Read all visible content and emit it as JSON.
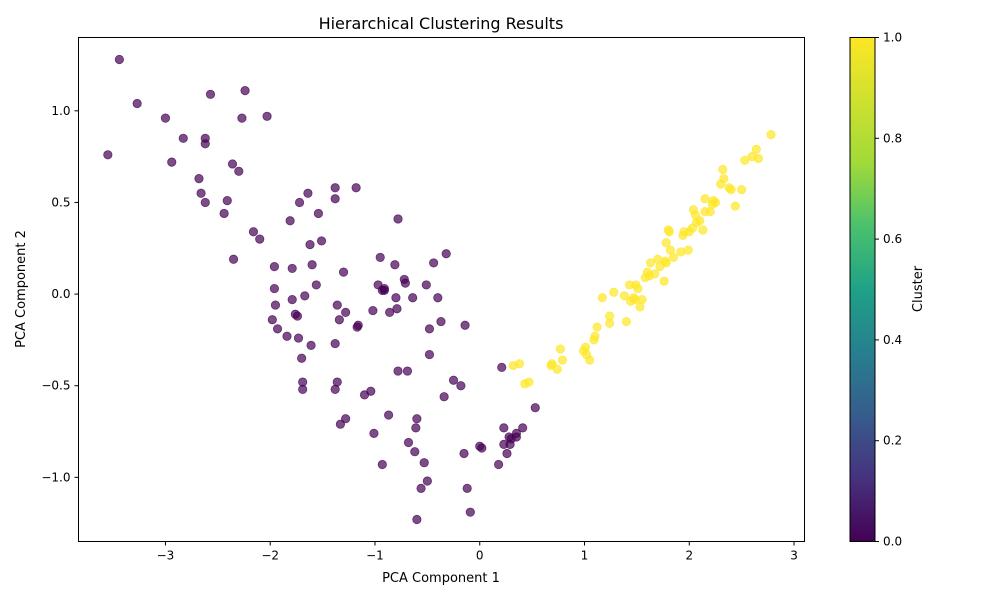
{
  "chart_data": {
    "type": "scatter",
    "title": "Hierarchical Clustering Results",
    "xlabel": "PCA Component 1",
    "ylabel": "PCA Component 2",
    "xlim": [
      -3.83,
      3.1
    ],
    "ylim": [
      -1.35,
      1.4
    ],
    "xticks": [
      -3,
      -2,
      -1,
      0,
      1,
      2,
      3
    ],
    "yticks": [
      -1.0,
      -0.5,
      0.0,
      0.5,
      1.0
    ],
    "xtick_labels": [
      "−3",
      "−2",
      "−1",
      "0",
      "1",
      "2",
      "3"
    ],
    "ytick_labels": [
      "−1.0",
      "−0.5",
      "0.0",
      "0.5",
      "1.0"
    ],
    "grid": false,
    "marker_alpha": 0.7,
    "colormap": "viridis",
    "colorbar": {
      "label": "Cluster",
      "range": [
        0.0,
        1.0
      ],
      "ticks": [
        0.0,
        0.2,
        0.4,
        0.6,
        0.8,
        1.0
      ],
      "tick_labels": [
        "0.0",
        "0.2",
        "0.4",
        "0.6",
        "0.8",
        "1.0"
      ]
    },
    "series": [
      {
        "cluster": 0,
        "color": "#440154",
        "points": [
          [
            -3.44,
            1.28
          ],
          [
            -3.55,
            0.76
          ],
          [
            -3.27,
            1.04
          ],
          [
            -3.0,
            0.96
          ],
          [
            -2.94,
            0.72
          ],
          [
            -2.83,
            0.85
          ],
          [
            -2.68,
            0.63
          ],
          [
            -2.66,
            0.55
          ],
          [
            -2.62,
            0.85
          ],
          [
            -2.62,
            0.82
          ],
          [
            -2.62,
            0.5
          ],
          [
            -2.57,
            1.09
          ],
          [
            -2.44,
            0.44
          ],
          [
            -2.41,
            0.51
          ],
          [
            -2.36,
            0.71
          ],
          [
            -2.35,
            0.19
          ],
          [
            -2.3,
            0.67
          ],
          [
            -2.27,
            0.96
          ],
          [
            -2.24,
            1.11
          ],
          [
            -2.16,
            0.34
          ],
          [
            -2.1,
            0.3
          ],
          [
            -2.03,
            0.97
          ],
          [
            -1.98,
            -0.14
          ],
          [
            -1.96,
            0.15
          ],
          [
            -1.96,
            0.03
          ],
          [
            -1.95,
            -0.06
          ],
          [
            -1.93,
            -0.19
          ],
          [
            -1.84,
            -0.23
          ],
          [
            -1.81,
            0.4
          ],
          [
            -1.79,
            0.14
          ],
          [
            -1.79,
            -0.03
          ],
          [
            -1.76,
            -0.11
          ],
          [
            -1.74,
            -0.12
          ],
          [
            -1.73,
            -0.24
          ],
          [
            -1.72,
            0.5
          ],
          [
            -1.7,
            -0.35
          ],
          [
            -1.69,
            -0.48
          ],
          [
            -1.69,
            -0.52
          ],
          [
            -1.67,
            -0.01
          ],
          [
            -1.64,
            0.55
          ],
          [
            -1.62,
            0.27
          ],
          [
            -1.61,
            -0.28
          ],
          [
            -1.6,
            0.16
          ],
          [
            -1.56,
            0.05
          ],
          [
            -1.54,
            0.44
          ],
          [
            -1.51,
            0.29
          ],
          [
            -1.38,
            0.58
          ],
          [
            -1.38,
            0.52
          ],
          [
            -1.38,
            -0.27
          ],
          [
            -1.38,
            -0.52
          ],
          [
            -1.36,
            -0.48
          ],
          [
            -1.36,
            -0.06
          ],
          [
            -1.34,
            -0.14
          ],
          [
            -1.33,
            -0.71
          ],
          [
            -1.3,
            0.12
          ],
          [
            -1.28,
            -0.1
          ],
          [
            -1.28,
            -0.68
          ],
          [
            -1.18,
            0.58
          ],
          [
            -1.17,
            -0.18
          ],
          [
            -1.16,
            -0.17
          ],
          [
            -1.1,
            -0.55
          ],
          [
            -1.04,
            -0.53
          ],
          [
            -1.02,
            -0.09
          ],
          [
            -1.01,
            -0.76
          ],
          [
            -0.97,
            0.05
          ],
          [
            -0.95,
            0.2
          ],
          [
            -0.93,
            0.02
          ],
          [
            -0.93,
            -0.93
          ],
          [
            -0.91,
            0.03
          ],
          [
            -0.91,
            0.02
          ],
          [
            -0.87,
            -0.66
          ],
          [
            -0.86,
            -0.1
          ],
          [
            -0.81,
            0.16
          ],
          [
            -0.8,
            -0.02
          ],
          [
            -0.79,
            -0.08
          ],
          [
            -0.78,
            0.41
          ],
          [
            -0.78,
            -0.42
          ],
          [
            -0.72,
            0.08
          ],
          [
            -0.71,
            0.06
          ],
          [
            -0.69,
            -0.42
          ],
          [
            -0.68,
            -0.81
          ],
          [
            -0.64,
            -0.02
          ],
          [
            -0.62,
            -0.86
          ],
          [
            -0.61,
            -0.73
          ],
          [
            -0.6,
            -0.68
          ],
          [
            -0.6,
            -1.23
          ],
          [
            -0.56,
            -1.06
          ],
          [
            -0.53,
            -0.92
          ],
          [
            -0.51,
            0.05
          ],
          [
            -0.5,
            -1.02
          ],
          [
            -0.48,
            -0.19
          ],
          [
            -0.48,
            -0.33
          ],
          [
            -0.44,
            0.17
          ],
          [
            -0.4,
            -0.02
          ],
          [
            -0.37,
            -0.15
          ],
          [
            -0.34,
            -0.56
          ],
          [
            -0.32,
            0.22
          ],
          [
            -0.25,
            -0.47
          ],
          [
            -0.18,
            -0.5
          ],
          [
            -0.15,
            -0.87
          ],
          [
            -0.14,
            -0.17
          ],
          [
            -0.12,
            -1.06
          ],
          [
            -0.09,
            -1.19
          ],
          [
            0.0,
            -0.83
          ],
          [
            0.02,
            -0.84
          ],
          [
            0.18,
            -0.93
          ],
          [
            0.21,
            -0.4
          ],
          [
            0.23,
            -0.73
          ],
          [
            0.23,
            -0.82
          ],
          [
            0.26,
            -0.87
          ],
          [
            0.28,
            -0.78
          ],
          [
            0.29,
            -0.82
          ],
          [
            0.3,
            -0.79
          ],
          [
            0.35,
            -0.78
          ],
          [
            0.35,
            -0.76
          ],
          [
            0.41,
            -0.73
          ],
          [
            0.53,
            -0.62
          ]
        ]
      },
      {
        "cluster": 1,
        "color": "#fde725",
        "points": [
          [
            0.32,
            -0.39
          ],
          [
            0.38,
            -0.38
          ],
          [
            0.43,
            -0.49
          ],
          [
            0.47,
            -0.48
          ],
          [
            0.68,
            -0.39
          ],
          [
            0.69,
            -0.38
          ],
          [
            0.74,
            -0.41
          ],
          [
            0.77,
            -0.3
          ],
          [
            0.79,
            -0.36
          ],
          [
            0.99,
            -0.31
          ],
          [
            1.01,
            -0.29
          ],
          [
            1.02,
            -0.33
          ],
          [
            1.05,
            -0.36
          ],
          [
            1.09,
            -0.25
          ],
          [
            1.1,
            -0.23
          ],
          [
            1.12,
            -0.18
          ],
          [
            1.17,
            -0.02
          ],
          [
            1.24,
            -0.12
          ],
          [
            1.24,
            -0.16
          ],
          [
            1.28,
            0.01
          ],
          [
            1.38,
            -0.01
          ],
          [
            1.4,
            -0.15
          ],
          [
            1.43,
            0.05
          ],
          [
            1.44,
            -0.04
          ],
          [
            1.47,
            -0.02
          ],
          [
            1.48,
            -0.03
          ],
          [
            1.49,
            0.05
          ],
          [
            1.51,
            0.03
          ],
          [
            1.53,
            -0.07
          ],
          [
            1.55,
            -0.03
          ],
          [
            1.58,
            0.09
          ],
          [
            1.6,
            0.12
          ],
          [
            1.62,
            0.1
          ],
          [
            1.63,
            0.17
          ],
          [
            1.67,
            0.11
          ],
          [
            1.7,
            0.19
          ],
          [
            1.72,
            0.15
          ],
          [
            1.76,
            0.07
          ],
          [
            1.77,
            0.18
          ],
          [
            1.78,
            0.28
          ],
          [
            1.78,
            0.17
          ],
          [
            1.8,
            0.35
          ],
          [
            1.81,
            0.34
          ],
          [
            1.82,
            0.24
          ],
          [
            1.85,
            0.2
          ],
          [
            1.92,
            0.23
          ],
          [
            1.94,
            0.32
          ],
          [
            1.95,
            0.34
          ],
          [
            1.99,
            0.24
          ],
          [
            2.0,
            0.34
          ],
          [
            2.03,
            0.36
          ],
          [
            2.04,
            0.46
          ],
          [
            2.06,
            0.43
          ],
          [
            2.07,
            0.39
          ],
          [
            2.1,
            0.4
          ],
          [
            2.13,
            0.35
          ],
          [
            2.15,
            0.45
          ],
          [
            2.15,
            0.52
          ],
          [
            2.2,
            0.45
          ],
          [
            2.22,
            0.49
          ],
          [
            2.23,
            0.51
          ],
          [
            2.25,
            0.5
          ],
          [
            2.3,
            0.6
          ],
          [
            2.32,
            0.68
          ],
          [
            2.33,
            0.63
          ],
          [
            2.38,
            0.58
          ],
          [
            2.4,
            0.57
          ],
          [
            2.44,
            0.48
          ],
          [
            2.5,
            0.57
          ],
          [
            2.53,
            0.73
          ],
          [
            2.6,
            0.75
          ],
          [
            2.64,
            0.79
          ],
          [
            2.66,
            0.74
          ],
          [
            2.78,
            0.87
          ]
        ]
      }
    ]
  }
}
